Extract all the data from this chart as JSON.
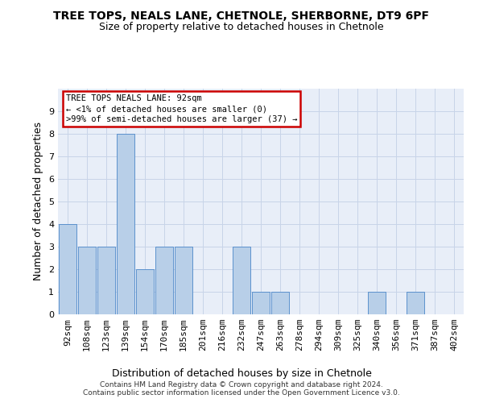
{
  "title": "TREE TOPS, NEALS LANE, CHETNOLE, SHERBORNE, DT9 6PF",
  "subtitle": "Size of property relative to detached houses in Chetnole",
  "xlabel": "Distribution of detached houses by size in Chetnole",
  "ylabel": "Number of detached properties",
  "categories": [
    "92sqm",
    "108sqm",
    "123sqm",
    "139sqm",
    "154sqm",
    "170sqm",
    "185sqm",
    "201sqm",
    "216sqm",
    "232sqm",
    "247sqm",
    "263sqm",
    "278sqm",
    "294sqm",
    "309sqm",
    "325sqm",
    "340sqm",
    "356sqm",
    "371sqm",
    "387sqm",
    "402sqm"
  ],
  "bar_values": [
    4,
    3,
    3,
    8,
    2,
    3,
    3,
    0,
    0,
    3,
    1,
    1,
    0,
    0,
    0,
    0,
    1,
    0,
    1,
    0,
    0
  ],
  "bar_color": "#b8cfe8",
  "bar_edge_color": "#4a86c8",
  "background_color": "#e8eef8",
  "annotation_text": "TREE TOPS NEALS LANE: 92sqm\n← <1% of detached houses are smaller (0)\n>99% of semi-detached houses are larger (37) →",
  "annotation_box_color": "#ffffff",
  "annotation_box_edge_color": "#cc0000",
  "footer_line1": "Contains HM Land Registry data © Crown copyright and database right 2024.",
  "footer_line2": "Contains public sector information licensed under the Open Government Licence v3.0.",
  "ylim": [
    0,
    10
  ],
  "yticks": [
    0,
    1,
    2,
    3,
    4,
    5,
    6,
    7,
    8,
    9
  ],
  "grid_color": "#c8d4e8",
  "title_fontsize": 10,
  "subtitle_fontsize": 9,
  "xlabel_fontsize": 9,
  "ylabel_fontsize": 9,
  "tick_fontsize": 8,
  "footer_fontsize": 6.5
}
